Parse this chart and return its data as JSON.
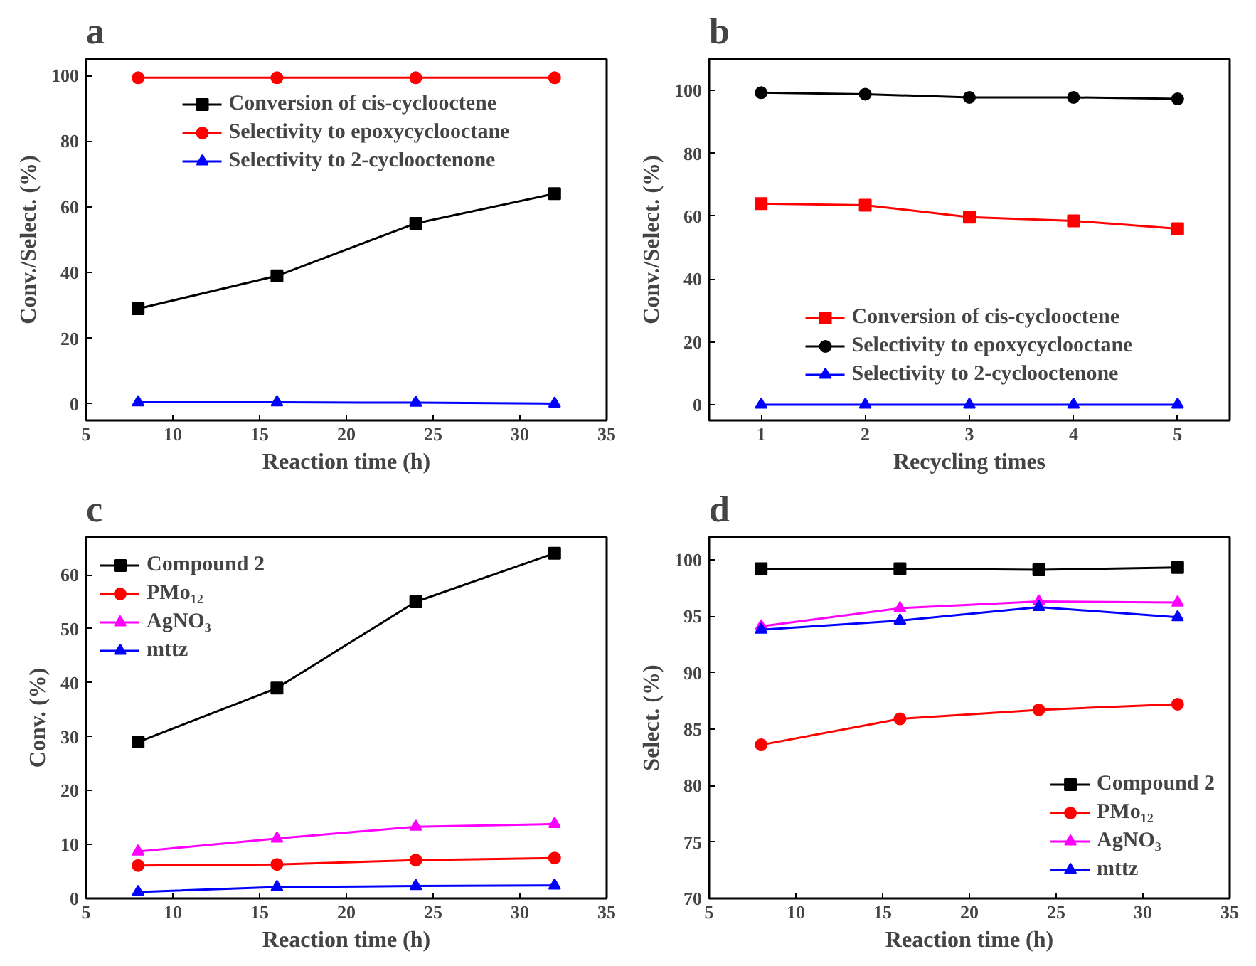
{
  "chart_data": [
    {
      "type": "line",
      "title": "a",
      "xlabel": "Reaction time (h)",
      "ylabel": "Conv./Select. (%)",
      "x": [
        8,
        16,
        24,
        32
      ],
      "xlim": [
        5,
        35
      ],
      "xticks": [
        5,
        10,
        15,
        20,
        25,
        30,
        35
      ],
      "ylim": [
        -5,
        105
      ],
      "yticks": [
        0,
        20,
        40,
        60,
        80,
        100
      ],
      "grid": false,
      "legend": "top",
      "series": [
        {
          "name": "Conversion of cis-cyclooctene",
          "color": "#000000",
          "marker": "square",
          "values": [
            29,
            39,
            55,
            64
          ]
        },
        {
          "name": "Selectivity to epoxycyclooctane",
          "color": "#ff0000",
          "marker": "circle",
          "values": [
            99.3,
            99.3,
            99.3,
            99.3
          ]
        },
        {
          "name": "Selectivity to 2-cyclooctenone",
          "color": "#0000ff",
          "marker": "triangle",
          "values": [
            0.5,
            0.5,
            0.4,
            0.1
          ]
        }
      ]
    },
    {
      "type": "line",
      "title": "b",
      "xlabel": "Recycling times",
      "ylabel": "Conv./Select. (%)",
      "x": [
        1,
        2,
        3,
        4,
        5
      ],
      "xlim": [
        0.5,
        5.5
      ],
      "xticks": [
        1,
        2,
        3,
        4,
        5
      ],
      "ylim": [
        -5,
        110
      ],
      "yticks": [
        0,
        20,
        40,
        60,
        80,
        100
      ],
      "grid": false,
      "legend": "bottom",
      "series": [
        {
          "name": "Conversion of cis-cyclooctene",
          "color": "#ff0000",
          "marker": "square",
          "values": [
            64,
            63.5,
            59.7,
            58.5,
            56
          ]
        },
        {
          "name": "Selectivity to epoxycyclooctane",
          "color": "#000000",
          "marker": "circle",
          "values": [
            99.3,
            98.8,
            97.8,
            97.8,
            97.3
          ]
        },
        {
          "name": "Selectivity to 2-cyclooctenone",
          "color": "#0000ff",
          "marker": "triangle",
          "values": [
            0,
            0,
            0,
            0,
            0
          ]
        }
      ]
    },
    {
      "type": "line",
      "title": "c",
      "xlabel": "Reaction time (h)",
      "ylabel": "Conv. (%)",
      "x": [
        8,
        16,
        24,
        32
      ],
      "xlim": [
        5,
        35
      ],
      "xticks": [
        5,
        10,
        15,
        20,
        25,
        30,
        35
      ],
      "ylim": [
        0,
        67
      ],
      "yticks": [
        0,
        10,
        20,
        30,
        40,
        50,
        60
      ],
      "grid": false,
      "legend": "top left",
      "series": [
        {
          "name": "Compound 2",
          "color": "#000000",
          "marker": "square",
          "values": [
            29,
            39,
            55,
            64
          ]
        },
        {
          "name": "PMo₁₂",
          "color": "#ff0000",
          "marker": "circle",
          "values": [
            6.1,
            6.3,
            7.1,
            7.5
          ]
        },
        {
          "name": "AgNO₃",
          "color": "#ff00ff",
          "marker": "triangle",
          "values": [
            8.7,
            11.1,
            13.3,
            13.8
          ]
        },
        {
          "name": "mttz",
          "color": "#0000ff",
          "marker": "triangle",
          "values": [
            1.2,
            2.1,
            2.3,
            2.4
          ]
        }
      ]
    },
    {
      "type": "line",
      "title": "d",
      "xlabel": "Reaction time (h)",
      "ylabel": "Select. (%)",
      "x": [
        8,
        16,
        24,
        32
      ],
      "xlim": [
        5,
        35
      ],
      "xticks": [
        5,
        10,
        15,
        20,
        25,
        30,
        35
      ],
      "ylim": [
        70,
        102
      ],
      "yticks": [
        70,
        75,
        80,
        85,
        90,
        95,
        100
      ],
      "grid": false,
      "legend": "bottom right",
      "series": [
        {
          "name": "Compound 2",
          "color": "#000000",
          "marker": "square",
          "values": [
            99.2,
            99.2,
            99.1,
            99.3
          ]
        },
        {
          "name": "PMo₁₂",
          "color": "#ff0000",
          "marker": "circle",
          "values": [
            83.6,
            85.9,
            86.7,
            87.2
          ]
        },
        {
          "name": "AgNO₃",
          "color": "#ff00ff",
          "marker": "triangle",
          "values": [
            94.1,
            95.7,
            96.3,
            96.2
          ]
        },
        {
          "name": "mttz",
          "color": "#0000ff",
          "marker": "triangle",
          "values": [
            93.8,
            94.6,
            95.8,
            94.9
          ]
        }
      ]
    }
  ]
}
